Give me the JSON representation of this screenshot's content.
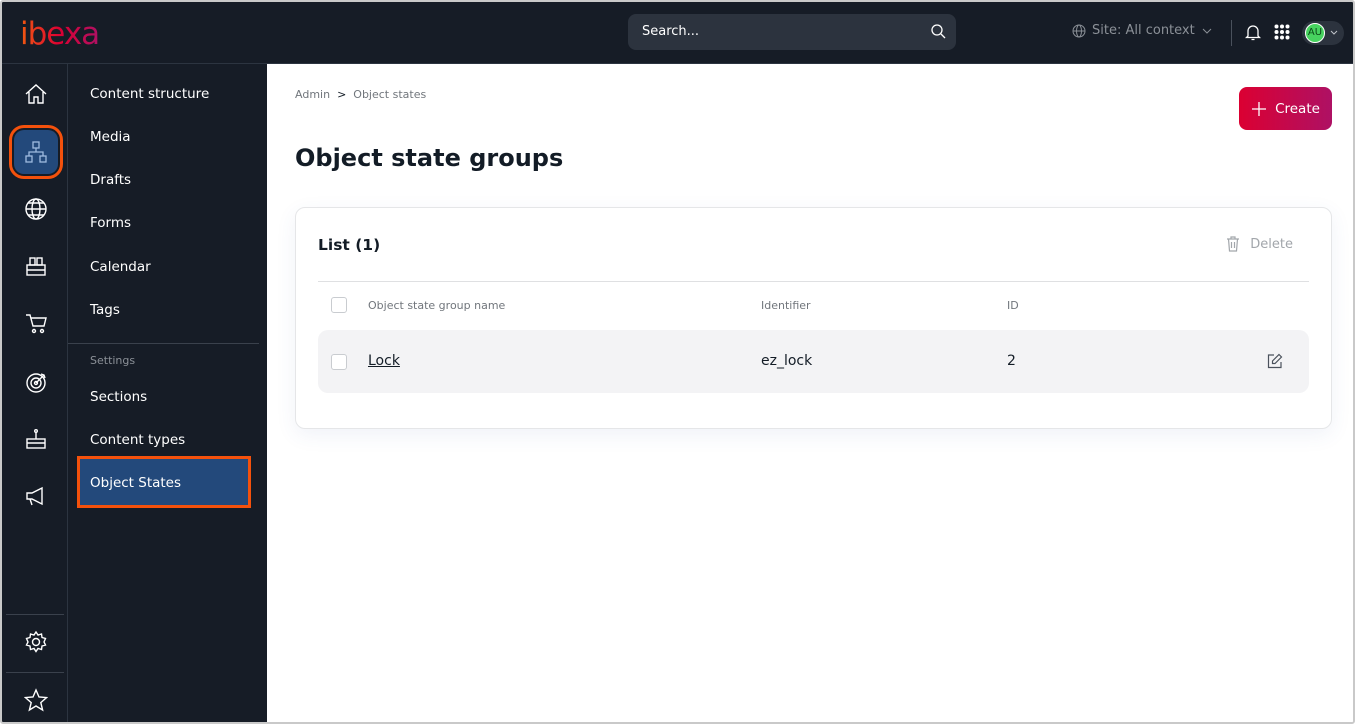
{
  "header": {
    "logo": "ibexa",
    "search_placeholder": "Search...",
    "site_context": "Site: All context",
    "user_initials": "AU"
  },
  "rail": {
    "items": [
      "home-icon",
      "content-tree-icon",
      "globe-icon",
      "catalog-icon",
      "cart-icon",
      "target-icon",
      "cake-icon",
      "megaphone-icon",
      "gear-icon",
      "star-icon"
    ],
    "active": "content-tree-icon"
  },
  "submenu": {
    "items": [
      "Content structure",
      "Media",
      "Drafts",
      "Forms",
      "Calendar",
      "Tags"
    ],
    "settings_label": "Settings",
    "settings_items": [
      "Sections",
      "Content types",
      "Object States"
    ],
    "active": "Object States"
  },
  "breadcrumb": [
    "Admin",
    ">",
    "Object states"
  ],
  "page_title": "Object state groups",
  "create_label": "Create",
  "list": {
    "title": "List (1)",
    "delete_label": "Delete",
    "columns": [
      "Object state group name",
      "Identifier",
      "ID"
    ],
    "rows": [
      {
        "name": "Lock",
        "identifier": "ez_lock",
        "id": "2"
      }
    ]
  },
  "colors": {
    "accent": "#db0032",
    "active_bg": "#23497b",
    "highlight": "#f4510c",
    "topbar": "#161c26"
  }
}
